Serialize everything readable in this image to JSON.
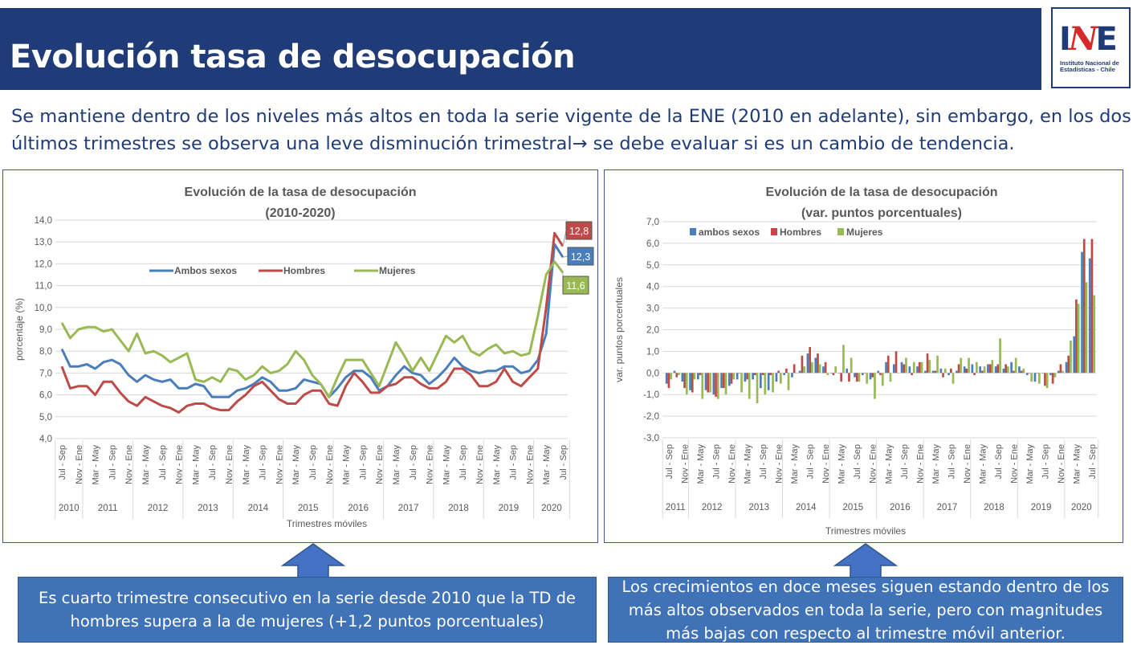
{
  "header": {
    "title": "Evolución tasa de desocupación"
  },
  "logo": {
    "mark": "INE",
    "text": "Instituto Nacional de Estadísticas - Chile"
  },
  "subtitle": {
    "line1": "Se mantiene dentro de los niveles más altos en toda la serie vigente de la ENE (2010 en adelante), sin embargo, en los dos",
    "line2": "últimos trimestres se observa una leve disminución trimestral→ se debe evaluar si es un cambio de tendencia."
  },
  "callouts": {
    "left": "Es cuarto trimestre consecutivo en la serie desde 2010 que la TD de hombres supera a la de mujeres (+1,2 puntos porcentuales)",
    "right": "Los crecimientos en doce meses siguen estando dentro de los más altos observados en toda la serie, pero con magnitudes más bajas con respecto al trimestre móvil anterior."
  },
  "colors": {
    "ambos": "#4a7ebb",
    "hombres": "#be4b48",
    "mujeres": "#98b954",
    "header": "#1f3b78",
    "callout": "#3f72b6"
  },
  "chart_data": [
    {
      "type": "line",
      "title": "Evolución de la tasa de desocupación",
      "subtitle": "(2010-2020)",
      "xlabel": "Trimestres móviles",
      "ylabel": "porcentaje (%)",
      "ylim": [
        4,
        14
      ],
      "yticks": [
        "4,0",
        "5,0",
        "6,0",
        "7,0",
        "8,0",
        "9,0",
        "10,0",
        "11,0",
        "12,0",
        "13,0",
        "14,0"
      ],
      "grid": true,
      "legend": "top-center",
      "x_start": "Jul - Sep 2010",
      "x_step": "2 meses",
      "tick_labels": [
        "Jul - Sep",
        "Nov - Ene",
        "Mar - May",
        "Jul - Sep",
        "Nov - Ene",
        "Mar - May",
        "Jul - Sep",
        "Nov - Ene",
        "Mar - May",
        "Jul - Sep",
        "Nov - Ene",
        "Mar - May",
        "Jul - Sep",
        "Nov - Ene",
        "Mar - May",
        "Jul - Sep",
        "Nov - Ene",
        "Mar - May",
        "Jul - Sep",
        "Nov - Ene",
        "Mar - May",
        "Jul - Sep",
        "Nov - Ene",
        "Mar - May",
        "Jul - Sep",
        "Nov - Ene",
        "Mar - May",
        "Jul - Sep",
        "Nov - Ene",
        "Mar - May",
        "Jul - Sep"
      ],
      "years": [
        "2010",
        "2011",
        "2012",
        "2013",
        "2014",
        "2015",
        "2016",
        "2017",
        "2018",
        "2019",
        "2020"
      ],
      "series": [
        {
          "name": "Ambos sexos",
          "color": "#4a7ebb",
          "end_label": "12,3",
          "values": [
            8.1,
            7.3,
            7.3,
            7.4,
            7.2,
            7.5,
            7.6,
            7.4,
            6.9,
            6.6,
            6.9,
            6.7,
            6.6,
            6.7,
            6.3,
            6.3,
            6.5,
            6.4,
            5.9,
            5.9,
            5.9,
            6.2,
            6.3,
            6.5,
            6.8,
            6.6,
            6.2,
            6.2,
            6.3,
            6.7,
            6.6,
            6.5,
            5.9,
            6.3,
            6.8,
            7.1,
            7.1,
            6.8,
            6.2,
            6.4,
            6.9,
            7.3,
            7.0,
            6.9,
            6.5,
            6.8,
            7.2,
            7.7,
            7.3,
            7.1,
            7.0,
            7.1,
            7.1,
            7.3,
            7.3,
            7.0,
            7.1,
            7.6,
            8.8,
            12.9,
            12.3
          ]
        },
        {
          "name": "Hombres",
          "color": "#be4b48",
          "end_label": "12,8",
          "values": [
            7.3,
            6.3,
            6.4,
            6.4,
            6.0,
            6.6,
            6.6,
            6.1,
            5.7,
            5.5,
            5.9,
            5.7,
            5.5,
            5.4,
            5.2,
            5.5,
            5.6,
            5.6,
            5.4,
            5.3,
            5.3,
            5.7,
            6.0,
            6.4,
            6.6,
            6.2,
            5.8,
            5.6,
            5.6,
            6.0,
            6.2,
            6.2,
            5.6,
            5.5,
            6.4,
            7.0,
            6.6,
            6.1,
            6.1,
            6.4,
            6.5,
            6.8,
            6.8,
            6.5,
            6.3,
            6.3,
            6.6,
            7.2,
            7.2,
            6.9,
            6.4,
            6.4,
            6.6,
            7.2,
            6.6,
            6.4,
            6.8,
            7.2,
            10.0,
            13.4,
            12.8
          ]
        },
        {
          "name": "Mujeres",
          "color": "#98b954",
          "end_label": "11,6",
          "values": [
            9.3,
            8.6,
            9.0,
            9.1,
            9.1,
            8.9,
            9.0,
            8.5,
            8.0,
            8.8,
            7.9,
            8.0,
            7.8,
            7.5,
            7.7,
            7.9,
            6.7,
            6.6,
            6.8,
            6.6,
            7.2,
            7.1,
            6.7,
            6.9,
            7.3,
            7.0,
            7.1,
            7.4,
            8.0,
            7.6,
            6.9,
            6.5,
            5.9,
            6.8,
            7.6,
            7.6,
            7.6,
            7.0,
            6.4,
            7.4,
            8.4,
            7.8,
            7.1,
            7.7,
            7.1,
            7.9,
            8.7,
            8.4,
            8.7,
            8.0,
            7.8,
            8.1,
            8.3,
            7.9,
            8.0,
            7.8,
            7.9,
            9.6,
            11.5,
            12.1,
            11.6
          ]
        }
      ]
    },
    {
      "type": "bar",
      "title": "Evolución de la tasa de desocupación",
      "subtitle": "(var. puntos porcentuales)",
      "xlabel": "Trimestres móviles",
      "ylabel": "var. puntos porcentuales",
      "ylim": [
        -3,
        7
      ],
      "yticks": [
        "-3,0",
        "-2,0",
        "-1,0",
        "0,0",
        "1,0",
        "2,0",
        "3,0",
        "4,0",
        "5,0",
        "6,0",
        "7,0"
      ],
      "grid": true,
      "legend": "top-left",
      "x_start": "Jul - Sep 2011",
      "x_step": "2 meses",
      "tick_labels": [
        "Jul - Sep",
        "Nov - Ene",
        "Mar - May",
        "Jul - Sep",
        "Nov - Ene",
        "Mar - May",
        "Jul - Sep",
        "Nov - Ene",
        "Mar - May",
        "Jul - Sep",
        "Nov - Ene",
        "Mar - May",
        "Jul - Sep",
        "Nov - Ene",
        "Mar - May",
        "Jul - Sep",
        "Nov - Ene",
        "Mar - May",
        "Jul - Sep",
        "Nov - Ene",
        "Mar - May",
        "Jul - Sep",
        "Nov - Ene",
        "Mar - May",
        "Jul - Sep",
        "Nov - Ene",
        "Mar - May",
        "Jul - Sep"
      ],
      "years": [
        "2011",
        "2012",
        "2013",
        "2014",
        "2015",
        "2016",
        "2017",
        "2018",
        "2019",
        "2020"
      ],
      "series": [
        {
          "name": "ambos sexos",
          "color": "#4a7ebb",
          "values": [
            -0.5,
            0.1,
            -0.4,
            -0.8,
            -0.3,
            -0.8,
            -1.0,
            -0.7,
            -0.6,
            -0.3,
            -0.4,
            -0.3,
            -0.7,
            -0.8,
            -0.4,
            -0.1,
            -0.2,
            0.1,
            0.9,
            0.7,
            0.3,
            0.0,
            0.0,
            0.2,
            -0.2,
            -0.1,
            -0.3,
            0.1,
            0.5,
            0.4,
            0.5,
            0.3,
            0.3,
            0.1,
            0.1,
            0.2,
            -0.1,
            0.1,
            0.3,
            0.4,
            0.3,
            0.4,
            0.3,
            0.2,
            0.5,
            0.3,
            -0.1,
            -0.4,
            0.0,
            -0.1,
            0.1,
            0.5,
            1.7,
            5.6,
            5.3
          ]
        },
        {
          "name": "Hombres",
          "color": "#be4b48",
          "values": [
            -0.7,
            -0.2,
            -0.7,
            -0.9,
            -0.1,
            -0.9,
            -1.1,
            -0.7,
            -0.5,
            0.0,
            -0.3,
            -0.1,
            -0.1,
            -0.1,
            0.1,
            0.2,
            0.4,
            0.8,
            1.2,
            0.9,
            0.5,
            -0.1,
            -0.4,
            -0.4,
            -0.4,
            0.0,
            -0.2,
            -0.1,
            0.8,
            1.0,
            0.4,
            -0.1,
            0.5,
            0.9,
            0.1,
            -0.2,
            0.2,
            0.4,
            0.2,
            -0.1,
            0.1,
            0.4,
            0.4,
            0.4,
            0.1,
            0.1,
            0.0,
            0.0,
            -0.6,
            -0.5,
            0.4,
            0.8,
            3.4,
            6.2,
            6.2
          ]
        },
        {
          "name": "Mujeres",
          "color": "#98b954",
          "values": [
            -0.3,
            -0.1,
            -1.0,
            -0.3,
            -1.2,
            -0.9,
            -1.2,
            -1.0,
            -0.3,
            -0.9,
            -1.2,
            -1.4,
            -1.0,
            -0.9,
            -0.5,
            -0.8,
            0.0,
            0.3,
            0.5,
            0.4,
            -0.1,
            0.3,
            1.3,
            0.7,
            -0.4,
            -0.5,
            -1.2,
            -0.6,
            -0.4,
            0.0,
            0.7,
            0.5,
            0.5,
            0.6,
            0.8,
            0.2,
            -0.5,
            0.7,
            0.7,
            0.5,
            0.3,
            0.6,
            1.6,
            0.3,
            0.7,
            0.2,
            -0.4,
            -0.5,
            -0.7,
            -0.2,
            0.1,
            1.5,
            3.2,
            4.2,
            3.6
          ]
        }
      ]
    }
  ]
}
